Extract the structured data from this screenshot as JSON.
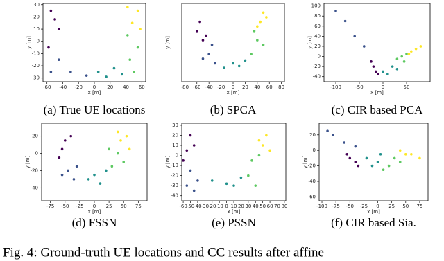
{
  "chart_data": [
    {
      "type": "scatter",
      "caption": "(a) True UE locations",
      "xlabel": "x [m]",
      "ylabel": "y [m]",
      "xlim": [
        -65,
        65
      ],
      "xticks": [
        -60,
        -40,
        -20,
        0,
        20,
        40,
        60
      ],
      "ylim": [
        -33,
        31
      ],
      "yticks": [
        -30,
        -20,
        -10,
        0,
        10,
        20,
        30
      ],
      "series": [
        {
          "color": "#440154",
          "x": [
            -55,
            -45,
            -58,
            -50
          ],
          "y": [
            25,
            10,
            -5,
            18
          ]
        },
        {
          "color": "#3b528b",
          "x": [
            -45,
            -55,
            -30,
            -10
          ],
          "y": [
            -15,
            -25,
            -25,
            -28
          ]
        },
        {
          "color": "#21918c",
          "x": [
            5,
            25,
            35,
            15
          ],
          "y": [
            -25,
            -22,
            -27,
            -29
          ]
        },
        {
          "color": "#5ec962",
          "x": [
            45,
            55,
            42,
            50
          ],
          "y": [
            -15,
            -5,
            5,
            -25
          ]
        },
        {
          "color": "#fde725",
          "x": [
            48,
            55,
            42,
            58
          ],
          "y": [
            15,
            25,
            28,
            10
          ]
        }
      ]
    },
    {
      "type": "scatter",
      "caption": "(b) SPCA",
      "xlabel": "x [m]",
      "ylabel": "y [m]",
      "xlim": [
        -85,
        85
      ],
      "xticks": [
        -80,
        -60,
        -40,
        -20,
        0,
        20,
        40,
        60,
        80
      ],
      "ylim": [
        -45,
        40
      ],
      "yticks": [],
      "series": [
        {
          "color": "#440154",
          "x": [
            -60,
            -50,
            -55,
            -45
          ],
          "y": [
            10,
            0,
            20,
            5
          ]
        },
        {
          "color": "#3b528b",
          "x": [
            -40,
            -30,
            -50,
            -35
          ],
          "y": [
            -15,
            -25,
            -20,
            -5
          ]
        },
        {
          "color": "#21918c",
          "x": [
            -15,
            0,
            10,
            20
          ],
          "y": [
            -30,
            -25,
            -28,
            -22
          ]
        },
        {
          "color": "#5ec962",
          "x": [
            30,
            40,
            35,
            50
          ],
          "y": [
            -15,
            0,
            10,
            -5
          ]
        },
        {
          "color": "#fde725",
          "x": [
            45,
            55,
            50,
            40
          ],
          "y": [
            20,
            25,
            30,
            15
          ]
        }
      ]
    },
    {
      "type": "scatter",
      "caption": "(c) CIR based PCA",
      "xlabel": "x [m]",
      "ylabel": "y [m]",
      "xlim": [
        -125,
        100
      ],
      "xticks": [
        -100,
        -50,
        0,
        50
      ],
      "ylim": [
        -50,
        105
      ],
      "yticks": [
        -40,
        -20,
        0,
        20,
        40,
        60,
        80,
        100
      ],
      "series": [
        {
          "color": "#440154",
          "x": [
            -20,
            -15,
            -25,
            -10
          ],
          "y": [
            -20,
            -30,
            -10,
            -35
          ]
        },
        {
          "color": "#3b528b",
          "x": [
            -60,
            -80,
            -40,
            -100
          ],
          "y": [
            40,
            70,
            20,
            90
          ]
        },
        {
          "color": "#21918c",
          "x": [
            0,
            20,
            30,
            10
          ],
          "y": [
            -30,
            -20,
            -25,
            -35
          ]
        },
        {
          "color": "#5ec962",
          "x": [
            40,
            50,
            30,
            45
          ],
          "y": [
            0,
            5,
            -5,
            -10
          ]
        },
        {
          "color": "#fde725",
          "x": [
            60,
            70,
            80,
            55
          ],
          "y": [
            10,
            15,
            20,
            5
          ]
        }
      ]
    },
    {
      "type": "scatter",
      "caption": "(d) FSSN",
      "xlabel": "x [m]",
      "ylabel": "y [m]",
      "xlim": [
        -90,
        90
      ],
      "xticks": [
        -75,
        -50,
        -25,
        0,
        25,
        50,
        75
      ],
      "ylim": [
        -55,
        35
      ],
      "yticks": [
        -40,
        -20,
        0,
        20
      ],
      "series": [
        {
          "color": "#440154",
          "x": [
            -50,
            -55,
            -40,
            -60
          ],
          "y": [
            15,
            5,
            20,
            -5
          ]
        },
        {
          "color": "#3b528b",
          "x": [
            -45,
            -30,
            -35,
            -55
          ],
          "y": [
            -20,
            -15,
            -30,
            -25
          ]
        },
        {
          "color": "#21918c",
          "x": [
            -10,
            0,
            10,
            20
          ],
          "y": [
            -30,
            -25,
            -35,
            -20
          ]
        },
        {
          "color": "#5ec962",
          "x": [
            30,
            40,
            25,
            50
          ],
          "y": [
            -15,
            0,
            5,
            -10
          ]
        },
        {
          "color": "#fde725",
          "x": [
            45,
            55,
            40,
            60
          ],
          "y": [
            15,
            20,
            25,
            5
          ]
        }
      ]
    },
    {
      "type": "scatter",
      "caption": "(e) PSSN",
      "xlabel": "x [m]",
      "ylabel": "y [m]",
      "xlim": [
        -62,
        82
      ],
      "xticks": [
        -60,
        -50,
        -40,
        -30,
        -20,
        -10,
        0,
        10,
        20,
        30,
        40,
        50,
        60,
        70,
        80
      ],
      "ylim": [
        -45,
        32
      ],
      "yticks": [
        -40,
        -30,
        -20,
        -10,
        0,
        10,
        20,
        30
      ],
      "series": [
        {
          "color": "#440154",
          "x": [
            -50,
            -55,
            -45,
            -60
          ],
          "y": [
            20,
            5,
            10,
            -5
          ]
        },
        {
          "color": "#3b528b",
          "x": [
            -50,
            -40,
            -55,
            -45
          ],
          "y": [
            -15,
            -25,
            -30,
            -35
          ]
        },
        {
          "color": "#21918c",
          "x": [
            -20,
            0,
            10,
            20
          ],
          "y": [
            -25,
            -28,
            -30,
            -22
          ]
        },
        {
          "color": "#5ec962",
          "x": [
            30,
            35,
            40,
            45
          ],
          "y": [
            -20,
            -5,
            -30,
            0
          ]
        },
        {
          "color": "#fde725",
          "x": [
            50,
            55,
            45,
            60
          ],
          "y": [
            10,
            20,
            15,
            5
          ]
        }
      ]
    },
    {
      "type": "scatter",
      "caption": "(f) CIR based Sia.",
      "xlabel": "x [m]",
      "ylabel": "y [m]",
      "xlim": [
        -105,
        90
      ],
      "xticks": [
        -100,
        -75,
        -50,
        -25,
        0,
        25,
        50,
        75
      ],
      "ylim": [
        -65,
        35
      ],
      "yticks": [
        -60,
        -40,
        -20,
        0,
        20
      ],
      "series": [
        {
          "color": "#440154",
          "x": [
            -50,
            -40,
            -55,
            -35
          ],
          "y": [
            -10,
            -15,
            -5,
            -20
          ]
        },
        {
          "color": "#3b528b",
          "x": [
            -80,
            -60,
            -90,
            -40
          ],
          "y": [
            20,
            10,
            25,
            5
          ]
        },
        {
          "color": "#21918c",
          "x": [
            -20,
            0,
            -10,
            5
          ],
          "y": [
            -10,
            -15,
            -20,
            -5
          ]
        },
        {
          "color": "#5ec962",
          "x": [
            20,
            30,
            40,
            10
          ],
          "y": [
            -20,
            -10,
            -15,
            -25
          ]
        },
        {
          "color": "#fde725",
          "x": [
            40,
            50,
            60,
            75
          ],
          "y": [
            0,
            -5,
            -5,
            -10
          ]
        }
      ]
    }
  ],
  "figure_caption": "Fig. 4: Ground-truth UE locations and CC results after affine"
}
